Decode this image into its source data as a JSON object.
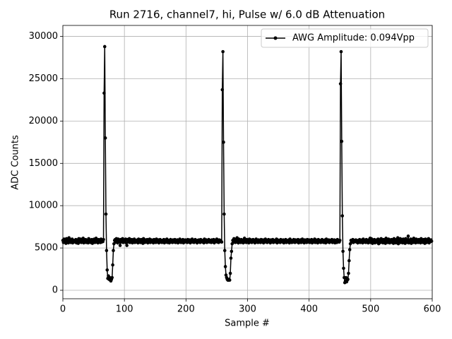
{
  "chart_data": {
    "type": "line",
    "title": "Run 2716, channel7, hi, Pulse w/ 6.0 dB Attenuation",
    "x_label": "Sample #",
    "y_label": "ADC Counts",
    "xlim": [
      0,
      600
    ],
    "xticks": [
      0,
      100,
      200,
      300,
      400,
      500,
      600
    ],
    "ylim": [
      -1000,
      31300
    ],
    "yticks": [
      0,
      5000,
      10000,
      15000,
      20000,
      25000,
      30000
    ],
    "grid": true,
    "legend": "upper right",
    "series": [
      {
        "name": "AWG Amplitude: 0.094Vpp",
        "color": "#000000",
        "values": [
          5900,
          5650,
          6050,
          5700,
          5800,
          5550,
          6100,
          5750,
          5850,
          5600,
          6200,
          5700,
          5950,
          5650,
          5800,
          6050,
          5600,
          5900,
          5750,
          5850,
          5700,
          6000,
          5600,
          5850,
          5950,
          5550,
          6100,
          5700,
          5800,
          6050,
          5650,
          5900,
          5750,
          6150,
          5600,
          5850,
          5700,
          6000,
          5650,
          5900,
          5800,
          5600,
          6100,
          5700,
          5950,
          5650,
          5850,
          6000,
          5550,
          5900,
          5750,
          6050,
          5650,
          5800,
          6150,
          5700,
          5900,
          5600,
          6000,
          5750,
          5850,
          5650,
          6050,
          5700,
          5900,
          5750,
          6000,
          23300,
          28800,
          18000,
          9000,
          4700,
          2400,
          1400,
          1700,
          1300,
          1500,
          1200,
          1100,
          1300,
          1500,
          3000,
          4700,
          5500,
          5900,
          6000,
          5700,
          6100,
          5800,
          5600,
          6050,
          5750,
          5900,
          5300,
          6000,
          5700,
          5850,
          6100,
          5650,
          5800,
          5950,
          5700,
          6050,
          5600,
          5300,
          6000,
          5850,
          5700,
          6100,
          5650,
          5900,
          5750,
          6000,
          5600,
          5850,
          5700,
          6050,
          5650,
          5900,
          5800,
          5700,
          5950,
          5600,
          6050,
          5750,
          5850,
          5650,
          6000,
          5700,
          5900,
          5550,
          6100,
          5800,
          5650,
          5950,
          5700,
          5850,
          6000,
          5600,
          5900,
          5750,
          6050,
          5650,
          5800,
          5950,
          5700,
          5850,
          5600,
          6000,
          5750,
          5900,
          5650,
          6050,
          5800,
          5700,
          5950,
          5600,
          5850,
          6000,
          5700,
          5800,
          5650,
          5900,
          5750,
          6000,
          5600,
          5850,
          5950,
          5700,
          6050,
          5650,
          5800,
          5900,
          5600,
          5750,
          6000,
          5700,
          5850,
          5650,
          5950,
          5800,
          5700,
          6000,
          5650,
          5850,
          5750,
          5950,
          5600,
          5900,
          5700,
          6050,
          5800,
          5650,
          5900,
          5750,
          6000,
          5600,
          5850,
          5700,
          5950,
          5750,
          5900,
          5650,
          6000,
          5800,
          5700,
          5950,
          5600,
          5850,
          5750,
          6050,
          5700,
          5900,
          5650,
          5800,
          6000,
          5750,
          5850,
          5600,
          5900,
          5700,
          5950,
          5800,
          5650,
          6000,
          5750,
          5850,
          5700,
          5900,
          5600,
          6050,
          5800,
          5700,
          5950,
          5650,
          5850,
          5750,
          6000,
          5700,
          5900,
          5800,
          5650,
          5950,
          5700,
          5850,
          6000,
          5600,
          5900,
          5750,
          5800,
          6050,
          5700,
          5850,
          5650,
          5950,
          5750,
          5900,
          5800,
          5700,
          23700,
          28200,
          17500,
          9000,
          4700,
          2800,
          1800,
          1500,
          1300,
          1200,
          1200,
          1300,
          1200,
          2000,
          3800,
          4600,
          5500,
          5900,
          5700,
          6100,
          5800,
          5650,
          5950,
          5700,
          6200,
          5800,
          5600,
          6050,
          5750,
          5900,
          5650,
          6000,
          5700,
          5850,
          5600,
          5950,
          6150,
          5700,
          5850,
          5650,
          6000,
          5750,
          5900,
          5600,
          6050,
          5800,
          5700,
          5950,
          5650,
          5850,
          6000,
          5750,
          5900,
          5600,
          5800,
          6050,
          5700,
          5850,
          5650,
          5950,
          5750,
          5900,
          5650,
          6000,
          5800,
          5700,
          5950,
          5600,
          5850,
          5750,
          6050,
          5700,
          5900,
          5650,
          5800,
          6000,
          5750,
          5850,
          5600,
          5950,
          5700,
          5800,
          6000,
          5650,
          5900,
          5750,
          5850,
          5700,
          6050,
          5600,
          5950,
          5800,
          5700,
          5900,
          5650,
          6000,
          5750,
          5850,
          5700,
          5950,
          5600,
          5900,
          5750,
          6000,
          5650,
          5850,
          5800,
          5700,
          5950,
          5600,
          6050,
          5750,
          5900,
          5650,
          5850,
          5700,
          6000,
          5800,
          5650,
          5950,
          5750,
          5850,
          5700,
          6000,
          5600,
          5900,
          5750,
          5950,
          5650,
          5800,
          6050,
          5700,
          5850,
          5600,
          5950,
          5750,
          5900,
          5650,
          6000,
          5800,
          5700,
          5950,
          5650,
          5850,
          5750,
          6000,
          5600,
          5900,
          5700,
          5800,
          6050,
          5650,
          5950,
          5750,
          5850,
          5600,
          6000,
          5700,
          5900,
          5800,
          5650,
          5850,
          6000,
          5700,
          5900,
          5650,
          5800,
          5950,
          5600,
          6050,
          5750,
          5850,
          5700,
          5950,
          5650,
          5900,
          5800,
          5750,
          6000,
          5650,
          5850,
          5700,
          5950,
          5600,
          5900,
          5800,
          5650,
          6000,
          5750,
          5850,
          5700,
          5900,
          24400,
          28200,
          17600,
          8800,
          4600,
          2600,
          1500,
          900,
          1100,
          1500,
          1000,
          1200,
          1300,
          2000,
          3500,
          4800,
          5500,
          5900,
          5700,
          5850,
          6000,
          5650,
          5900,
          5750,
          5800,
          5950,
          5700,
          5850,
          5600,
          5900,
          5750,
          6000,
          5650,
          5850,
          5700,
          5950,
          5600,
          6050,
          5800,
          5700,
          5900,
          5650,
          6000,
          5750,
          5850,
          5600,
          5950,
          5700,
          6150,
          5650,
          6100,
          5800,
          5550,
          5950,
          5700,
          6000,
          5600,
          5850,
          5750,
          5950,
          5650,
          6050,
          5500,
          5900,
          5800,
          5650,
          6100,
          5700,
          5850,
          5600,
          6000,
          5750,
          5900,
          5550,
          6150,
          5700,
          5850,
          5650,
          6050,
          5800,
          5600,
          5950,
          5750,
          6000,
          5650,
          5900,
          5550,
          6100,
          5750,
          5850,
          5600,
          6000,
          5700,
          6200,
          5500,
          5900,
          5750,
          6100,
          5650,
          5850,
          6000,
          5600,
          6050,
          5750,
          5900,
          5550,
          6100,
          5700,
          5950,
          5650,
          6400,
          5600,
          5900,
          5750,
          6050,
          5550,
          6000,
          5800,
          5650,
          6150,
          5700,
          5900,
          5600,
          6050,
          5750,
          5850,
          5650,
          6000,
          5700,
          5850,
          5600,
          6100,
          5750,
          5900,
          5650,
          6000,
          5700,
          5550,
          6050,
          5800,
          5650,
          5950,
          5700,
          6100,
          5600,
          5850,
          5750,
          5950,
          5800
        ]
      }
    ]
  }
}
